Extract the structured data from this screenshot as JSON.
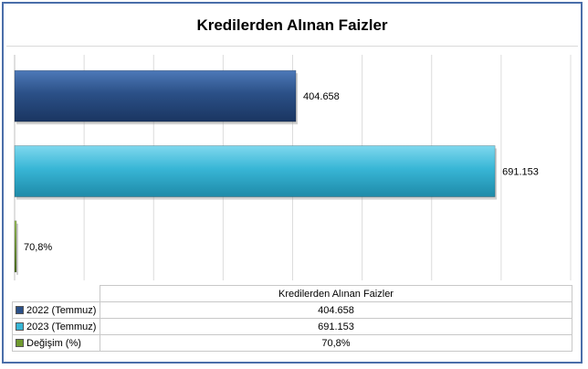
{
  "chart_data": {
    "type": "bar",
    "orientation": "horizontal",
    "title": "Kredilerden Alınan Faizler",
    "categories": [
      "2022 (Temmuz)",
      "2023 (Temmuz)",
      "Değişim (%)"
    ],
    "values": [
      404658,
      691153,
      70.8
    ],
    "data_labels": [
      "404.658",
      "691.153",
      "70,8%"
    ],
    "table_header": "Kredilerden Alınan Faizler",
    "xlim": [
      0,
      800000
    ],
    "grid": true,
    "legend": "data-table-below",
    "colors": [
      "#2b5087",
      "#38b6d6",
      "#6f9a2e"
    ]
  }
}
